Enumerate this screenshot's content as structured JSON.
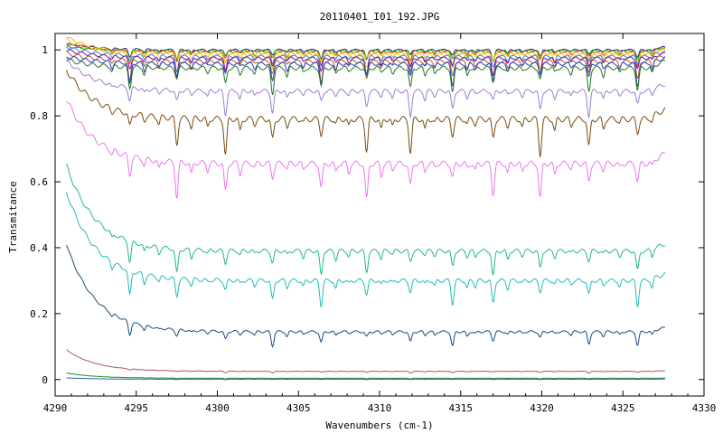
{
  "chart_data": {
    "type": "line",
    "title": "20110401_I01_192.JPG",
    "xlabel": "Wavenumbers (cm-1)",
    "ylabel": "Transmitance",
    "xlim": [
      4290,
      4330
    ],
    "ylim": [
      -0.05,
      1.05
    ],
    "xticks": [
      4290,
      4295,
      4300,
      4305,
      4310,
      4315,
      4320,
      4325,
      4330
    ],
    "yticks": [
      0,
      0.2,
      0.4,
      0.6,
      0.8,
      1
    ],
    "ytick_labels": [
      "0",
      "0.2",
      "0.4",
      "0.6",
      "0.8",
      "1"
    ],
    "grid": false,
    "legend": "none",
    "x_range_data": [
      4290.7,
      4327.6
    ],
    "absorption_lines": [
      4294.6,
      4297.5,
      4300.5,
      4303.4,
      4306.4,
      4309.2,
      4311.9,
      4314.5,
      4317.0,
      4319.9,
      4322.9,
      4325.9
    ],
    "series": [
      {
        "color": "#2222aa",
        "baseline": 1.0,
        "start": 1.02,
        "depth": 0.03
      },
      {
        "color": "#00aa00",
        "baseline": 0.998,
        "start": 1.01,
        "depth": 0.03
      },
      {
        "color": "#cc3333",
        "baseline": 0.995,
        "start": 1.02,
        "depth": 0.04
      },
      {
        "color": "#ffaa00",
        "baseline": 0.99,
        "start": 1.04,
        "depth": 0.04
      },
      {
        "color": "#dddd00",
        "baseline": 0.985,
        "start": 1.03,
        "depth": 0.05
      },
      {
        "color": "#1e90ff",
        "baseline": 0.98,
        "start": 1.01,
        "depth": 0.05
      },
      {
        "color": "#990099",
        "baseline": 0.975,
        "start": 1.0,
        "depth": 0.05
      },
      {
        "color": "#996633",
        "baseline": 0.965,
        "start": 0.99,
        "depth": 0.06
      },
      {
        "color": "#3333cc",
        "baseline": 0.958,
        "start": 0.98,
        "depth": 0.06
      },
      {
        "color": "#227722",
        "baseline": 0.945,
        "start": 0.97,
        "depth": 0.07
      },
      {
        "color": "#9a7fd8",
        "baseline": 0.875,
        "start": 0.97,
        "depth": 0.07
      },
      {
        "color": "#7a4a10",
        "baseline": 0.79,
        "start": 0.94,
        "depth": 0.1
      },
      {
        "color": "#ee77ee",
        "baseline": 0.655,
        "start": 0.85,
        "depth": 0.1
      },
      {
        "color": "#22bb77",
        "baseline": 0.39,
        "start": 0.65,
        "depth": 0.07
      },
      {
        "color": "#22bbbb",
        "baseline": 0.3,
        "start": 0.57,
        "depth": 0.07
      },
      {
        "color": "#1a4a7a",
        "baseline": 0.145,
        "start": 0.41,
        "depth": 0.04
      },
      {
        "color": "#aa5566",
        "baseline": 0.025,
        "start": 0.09,
        "depth": 0.005
      },
      {
        "color": "#228822",
        "baseline": 0.004,
        "start": 0.02,
        "depth": 0.002
      },
      {
        "color": "#2266aa",
        "baseline": 0.001,
        "start": 0.005,
        "depth": 0.001
      }
    ]
  }
}
